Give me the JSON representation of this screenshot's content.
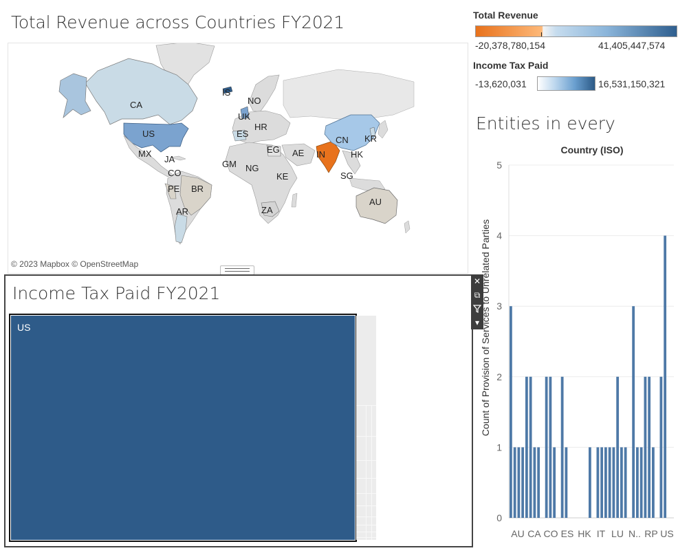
{
  "map": {
    "title": "Total Revenue across Countries FY2021",
    "attribution": "© 2023 Mapbox © OpenStreetMap",
    "labels": [
      "CA",
      "US",
      "MX",
      "JA",
      "CO",
      "PE",
      "BR",
      "AR",
      "IS",
      "NO",
      "UK",
      "ES",
      "HR",
      "EG",
      "AE",
      "GM",
      "NG",
      "KE",
      "ZA",
      "IN",
      "CN",
      "KR",
      "HK",
      "SG",
      "AU"
    ],
    "colors": {
      "land": "#dcdcdc",
      "na_light": "#c9dbe6",
      "us": "#7ba3cf",
      "alaska": "#a9c5de",
      "india": "#e8721c",
      "china": "#a6c8e8",
      "australia": "#d9d4ca",
      "brazil": "#d9d4ca",
      "ocean": "#ffffff"
    }
  },
  "legend_revenue": {
    "title": "Total Revenue",
    "min": "-20,378,780,154",
    "max": "41,405,447,574",
    "color_low": "#e8721c",
    "color_high": "#2f5f8f"
  },
  "legend_tax": {
    "title": "Income Tax Paid",
    "min": "-13,620,031",
    "max": "16,531,150,321",
    "color_low": "#ffffff",
    "color_high": "#2c5a87"
  },
  "bar_panel": {
    "title": "Entities in every",
    "header": "Country (ISO)"
  },
  "treemap": {
    "title": "Income Tax Paid FY2021",
    "top_label": "US",
    "top_color": "#2e5b89"
  },
  "toolbar": {
    "close_icon": "close-icon",
    "export_icon": "export-icon",
    "filter_icon": "filter-icon",
    "menu_icon": "menu-icon"
  },
  "chart_data": {
    "type": "bar",
    "title": "",
    "xlabel": "Country (ISO)",
    "ylabel": "Count of Provision of Services to Unrelated Parties",
    "ylim": [
      0,
      5
    ],
    "y_ticks": [
      0,
      1,
      2,
      3,
      4,
      5
    ],
    "grid": true,
    "color": "#4e79a7",
    "x_tick_labels": [
      "AU",
      "CA",
      "CO",
      "ES",
      "HK",
      "IT",
      "LU",
      "N..",
      "RP",
      "US"
    ],
    "values": [
      3,
      1,
      1,
      1,
      2,
      2,
      1,
      1,
      0,
      2,
      2,
      1,
      0,
      2,
      1,
      0,
      0,
      0,
      0,
      0,
      1,
      0,
      1,
      1,
      1,
      1,
      1,
      2,
      1,
      1,
      0,
      3,
      1,
      1,
      2,
      2,
      1,
      0,
      2,
      4
    ]
  }
}
